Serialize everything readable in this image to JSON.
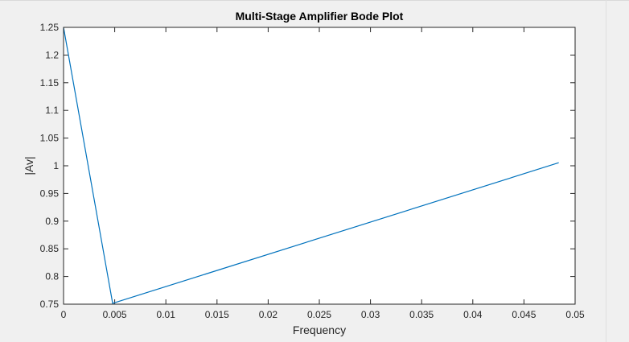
{
  "window": {
    "background": "#f0f0f0"
  },
  "chart_data": {
    "type": "line",
    "title": "Multi-Stage Amplifier Bode Plot",
    "xlabel": "Frequency",
    "ylabel": "|Av|",
    "xlim": [
      0,
      0.05
    ],
    "ylim": [
      0.75,
      1.25
    ],
    "xticks": [
      "0",
      "0.005",
      "0.01",
      "0.015",
      "0.02",
      "0.025",
      "0.03",
      "0.035",
      "0.04",
      "0.045",
      "0.05"
    ],
    "yticks": [
      "0.75",
      "0.8",
      "0.85",
      "0.9",
      "0.95",
      "1",
      "1.05",
      "1.1",
      "1.15",
      "1.2",
      "1.25"
    ],
    "grid": false,
    "box": true,
    "series": [
      {
        "color": "#0072bd",
        "x": [
          0,
          0.0048,
          0.0484
        ],
        "y": [
          1.25,
          0.7515,
          1.0055
        ]
      }
    ]
  }
}
